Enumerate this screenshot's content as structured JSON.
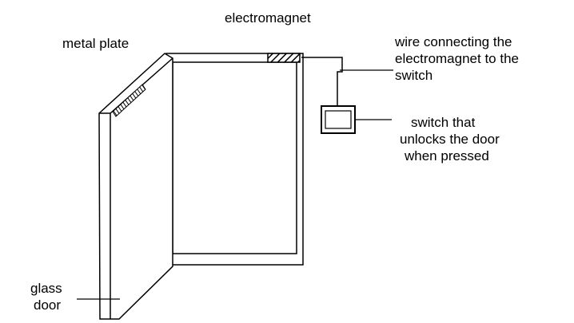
{
  "labels": {
    "electromagnet": "electromagnet",
    "metal_plate": "metal plate",
    "wire": [
      "wire connecting the",
      "electromagnet to the",
      "switch"
    ],
    "switch": [
      "switch that",
      "unlocks the door",
      "when pressed"
    ],
    "glass_door": [
      "glass",
      "door"
    ]
  }
}
